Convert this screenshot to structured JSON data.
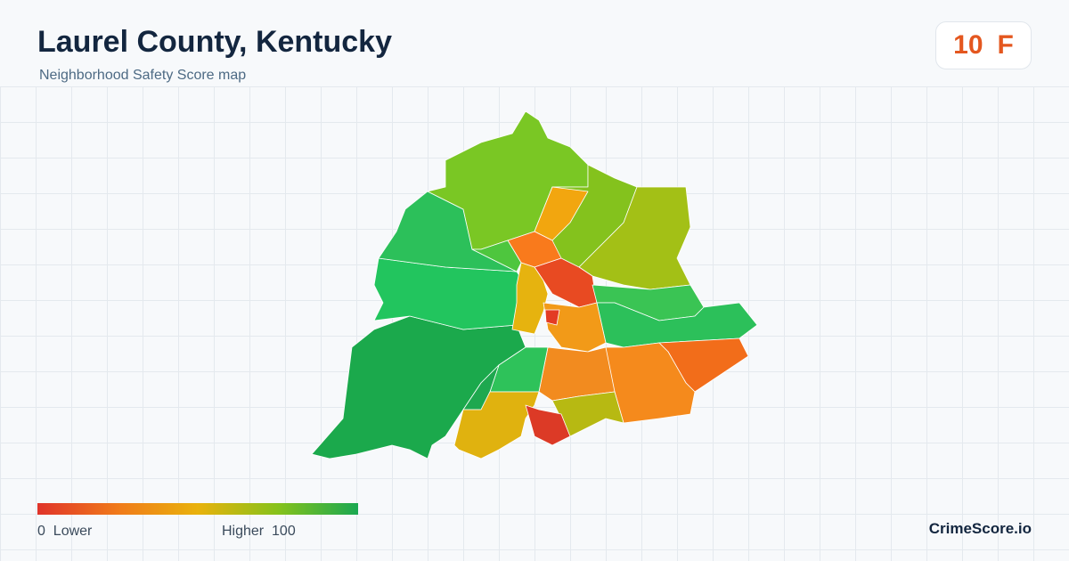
{
  "header": {
    "title": "Laurel County, Kentucky",
    "subtitle": "Neighborhood Safety Score map",
    "score": 10,
    "grade": "F"
  },
  "legend": {
    "min": 0,
    "min_label": "Lower",
    "max_label": "Higher",
    "max": 100
  },
  "footer": {
    "brand": "CrimeScore.io"
  }
}
